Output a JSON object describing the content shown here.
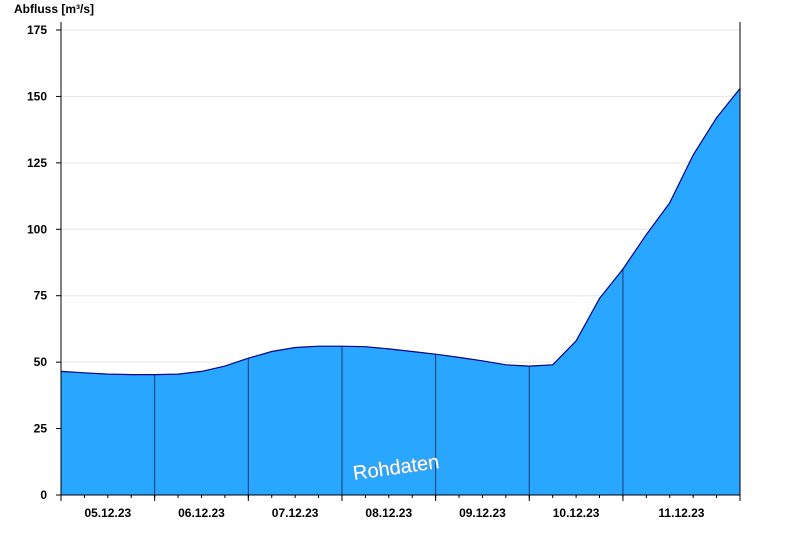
{
  "chart_data": {
    "type": "area",
    "ylabel": "Abfluss [m³/s]",
    "ylim": [
      0,
      175
    ],
    "yticks": [
      0,
      25,
      50,
      75,
      100,
      125,
      150,
      175
    ],
    "xlim": [
      "2023-12-04T12:00",
      "2023-12-11T18:00"
    ],
    "xtick_labels": [
      "05.12.23",
      "06.12.23",
      "07.12.23",
      "08.12.23",
      "09.12.23",
      "10.12.23",
      "11.12.23"
    ],
    "day_boundaries": [
      "2023-12-05T12:00",
      "2023-12-06T12:00",
      "2023-12-07T12:00",
      "2023-12-08T12:00",
      "2023-12-09T12:00",
      "2023-12-10T12:00"
    ],
    "grid": true,
    "colors": {
      "fill": "#29A6FF",
      "line": "#00008B",
      "grid": "#E6E6E6",
      "divider": "#1A3A6A"
    },
    "watermark": "Rohdaten",
    "series": [
      {
        "x": [
          "2023-12-04T12:00",
          "2023-12-04T18:00",
          "2023-12-05T00:00",
          "2023-12-05T06:00",
          "2023-12-05T12:00",
          "2023-12-05T18:00",
          "2023-12-06T00:00",
          "2023-12-06T06:00",
          "2023-12-06T12:00",
          "2023-12-06T18:00",
          "2023-12-07T00:00",
          "2023-12-07T06:00",
          "2023-12-07T12:00",
          "2023-12-07T18:00",
          "2023-12-08T00:00",
          "2023-12-08T06:00",
          "2023-12-08T12:00",
          "2023-12-08T18:00",
          "2023-12-09T00:00",
          "2023-12-09T06:00",
          "2023-12-09T12:00",
          "2023-12-09T18:00",
          "2023-12-10T00:00",
          "2023-12-10T06:00",
          "2023-12-10T12:00",
          "2023-12-10T18:00",
          "2023-12-11T00:00",
          "2023-12-11T06:00",
          "2023-12-11T12:00",
          "2023-12-11T18:00"
        ],
        "y": [
          46.5,
          46,
          45.5,
          45.3,
          45.3,
          45.5,
          46.5,
          48.5,
          51.5,
          54,
          55.5,
          56,
          56,
          55.8,
          55,
          54,
          53,
          51.8,
          50.5,
          49,
          48.5,
          49,
          58,
          74,
          85,
          98,
          110,
          128,
          142,
          153
        ]
      }
    ]
  }
}
